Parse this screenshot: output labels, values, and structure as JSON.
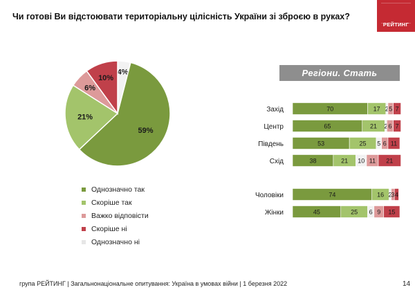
{
  "page": {
    "title": "Чи готові Ви відстоювати територіальну цілісність України зі зброєю в руках?",
    "logo_text": "РЕЙТИНГ",
    "footer": "група РЕЙТИНГ | Загальнонаціональне опитування: Україна в умовах війни | 1 березня 2022",
    "page_number": "14",
    "section_header": "Регіони. Стать"
  },
  "chart_data": [
    {
      "type": "pie",
      "categories": [
        "Однозначно так",
        "Скоріше так",
        "Важко відповісти",
        "Скоріше ні",
        "Однозначно ні"
      ],
      "values": [
        59,
        21,
        6,
        10,
        4
      ],
      "labels": [
        "59%",
        "21%",
        "6%",
        "10%",
        "4%"
      ],
      "colors": [
        "#7a9a3e",
        "#a3c46b",
        "#dd9a9a",
        "#c0404a",
        "#f2f2f2"
      ],
      "legend_position": "bottom"
    },
    {
      "type": "bar",
      "stacked": true,
      "orientation": "horizontal",
      "categories": [
        "Захід",
        "Центр",
        "Південь",
        "Схід",
        "Чоловіки",
        "Жінки"
      ],
      "groups": [
        [
          "Захід",
          "Центр",
          "Південь",
          "Схід"
        ],
        [
          "Чоловіки",
          "Жінки"
        ]
      ],
      "series": [
        {
          "name": "Однозначно так",
          "color": "#7a9a3e",
          "values": [
            70,
            65,
            53,
            38,
            74,
            45
          ]
        },
        {
          "name": "Скоріше так",
          "color": "#a3c46b",
          "values": [
            17,
            21,
            25,
            21,
            16,
            25
          ]
        },
        {
          "name": "Важко відповісти",
          "color": "#f2f2f2",
          "values": [
            2,
            2,
            5,
            10,
            2,
            6
          ]
        },
        {
          "name": "Скоріше ні",
          "color": "#dd9a9a",
          "values": [
            5,
            6,
            6,
            11,
            3,
            9
          ]
        },
        {
          "name": "Однозначно ні",
          "color": "#c0404a",
          "values": [
            7,
            7,
            11,
            21,
            4,
            15
          ]
        }
      ],
      "xlim": [
        0,
        100
      ]
    }
  ]
}
